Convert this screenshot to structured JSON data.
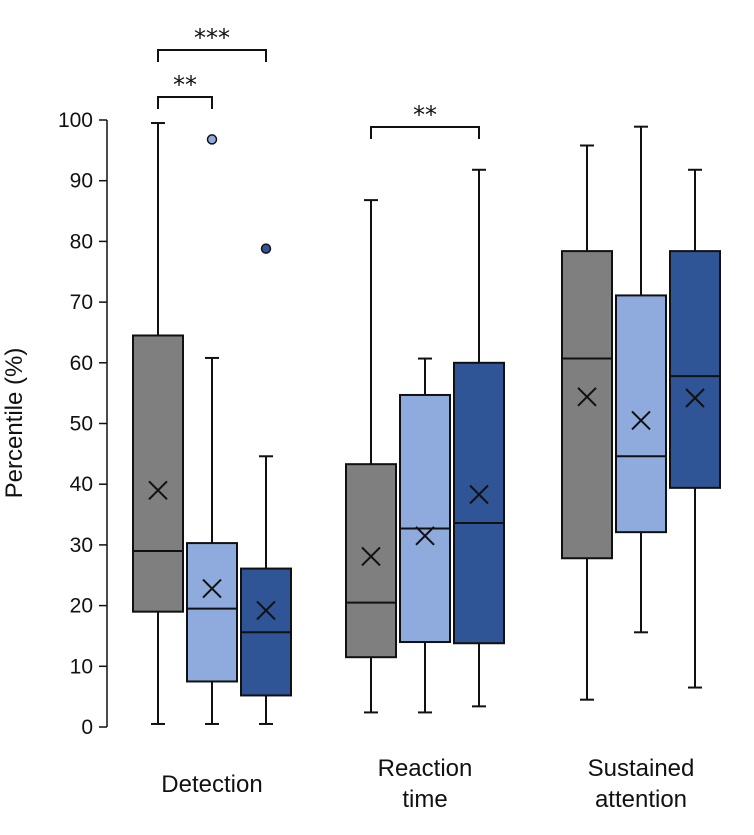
{
  "chart_data": {
    "type": "box",
    "ylabel": "Percentile (%)",
    "ylim": [
      0,
      100
    ],
    "yticks": [
      0,
      10,
      20,
      30,
      40,
      50,
      60,
      70,
      80,
      90,
      100
    ],
    "colors": [
      "#7f7f7f",
      "#8faadc",
      "#2f5597"
    ],
    "groups": [
      {
        "label_lines": [
          "Detection"
        ],
        "boxes": [
          {
            "min": 0.5,
            "q1": 19,
            "median": 29,
            "q3": 64.5,
            "max": 99.5,
            "mean": 39,
            "outliers": []
          },
          {
            "min": 0.5,
            "q1": 7.5,
            "median": 19.5,
            "q3": 30.3,
            "max": 60.8,
            "mean": 22.8,
            "outliers": [
              96.8
            ]
          },
          {
            "min": 0.5,
            "q1": 5.2,
            "median": 15.6,
            "q3": 26.1,
            "max": 44.6,
            "mean": 19.2,
            "outliers": [
              78.8
            ]
          }
        ]
      },
      {
        "label_lines": [
          "Reaction",
          "time"
        ],
        "boxes": [
          {
            "min": 2.4,
            "q1": 11.5,
            "median": 20.5,
            "q3": 43.3,
            "max": 86.8,
            "mean": 28.1,
            "outliers": []
          },
          {
            "min": 2.4,
            "q1": 14,
            "median": 32.7,
            "q3": 54.7,
            "max": 60.7,
            "mean": 31.5,
            "outliers": []
          },
          {
            "min": 3.4,
            "q1": 13.8,
            "median": 33.6,
            "q3": 60,
            "max": 91.8,
            "mean": 38.3,
            "outliers": []
          }
        ]
      },
      {
        "label_lines": [
          "Sustained",
          "attention"
        ],
        "boxes": [
          {
            "min": 4.5,
            "q1": 27.8,
            "median": 60.7,
            "q3": 78.4,
            "max": 95.8,
            "mean": 54.4,
            "outliers": []
          },
          {
            "min": 15.6,
            "q1": 32.1,
            "median": 44.6,
            "q3": 71.1,
            "max": 98.9,
            "mean": 50.5,
            "outliers": []
          },
          {
            "min": 6.5,
            "q1": 39.4,
            "median": 57.8,
            "q3": 78.4,
            "max": 91.8,
            "mean": 54.2,
            "outliers": []
          }
        ]
      }
    ],
    "significance": [
      {
        "group": 0,
        "from": 0,
        "to": 2,
        "label": "***",
        "level": 2
      },
      {
        "group": 0,
        "from": 0,
        "to": 1,
        "label": "**",
        "level": 1
      },
      {
        "group": 1,
        "from": 0,
        "to": 2,
        "label": "**",
        "level": 1
      }
    ]
  }
}
